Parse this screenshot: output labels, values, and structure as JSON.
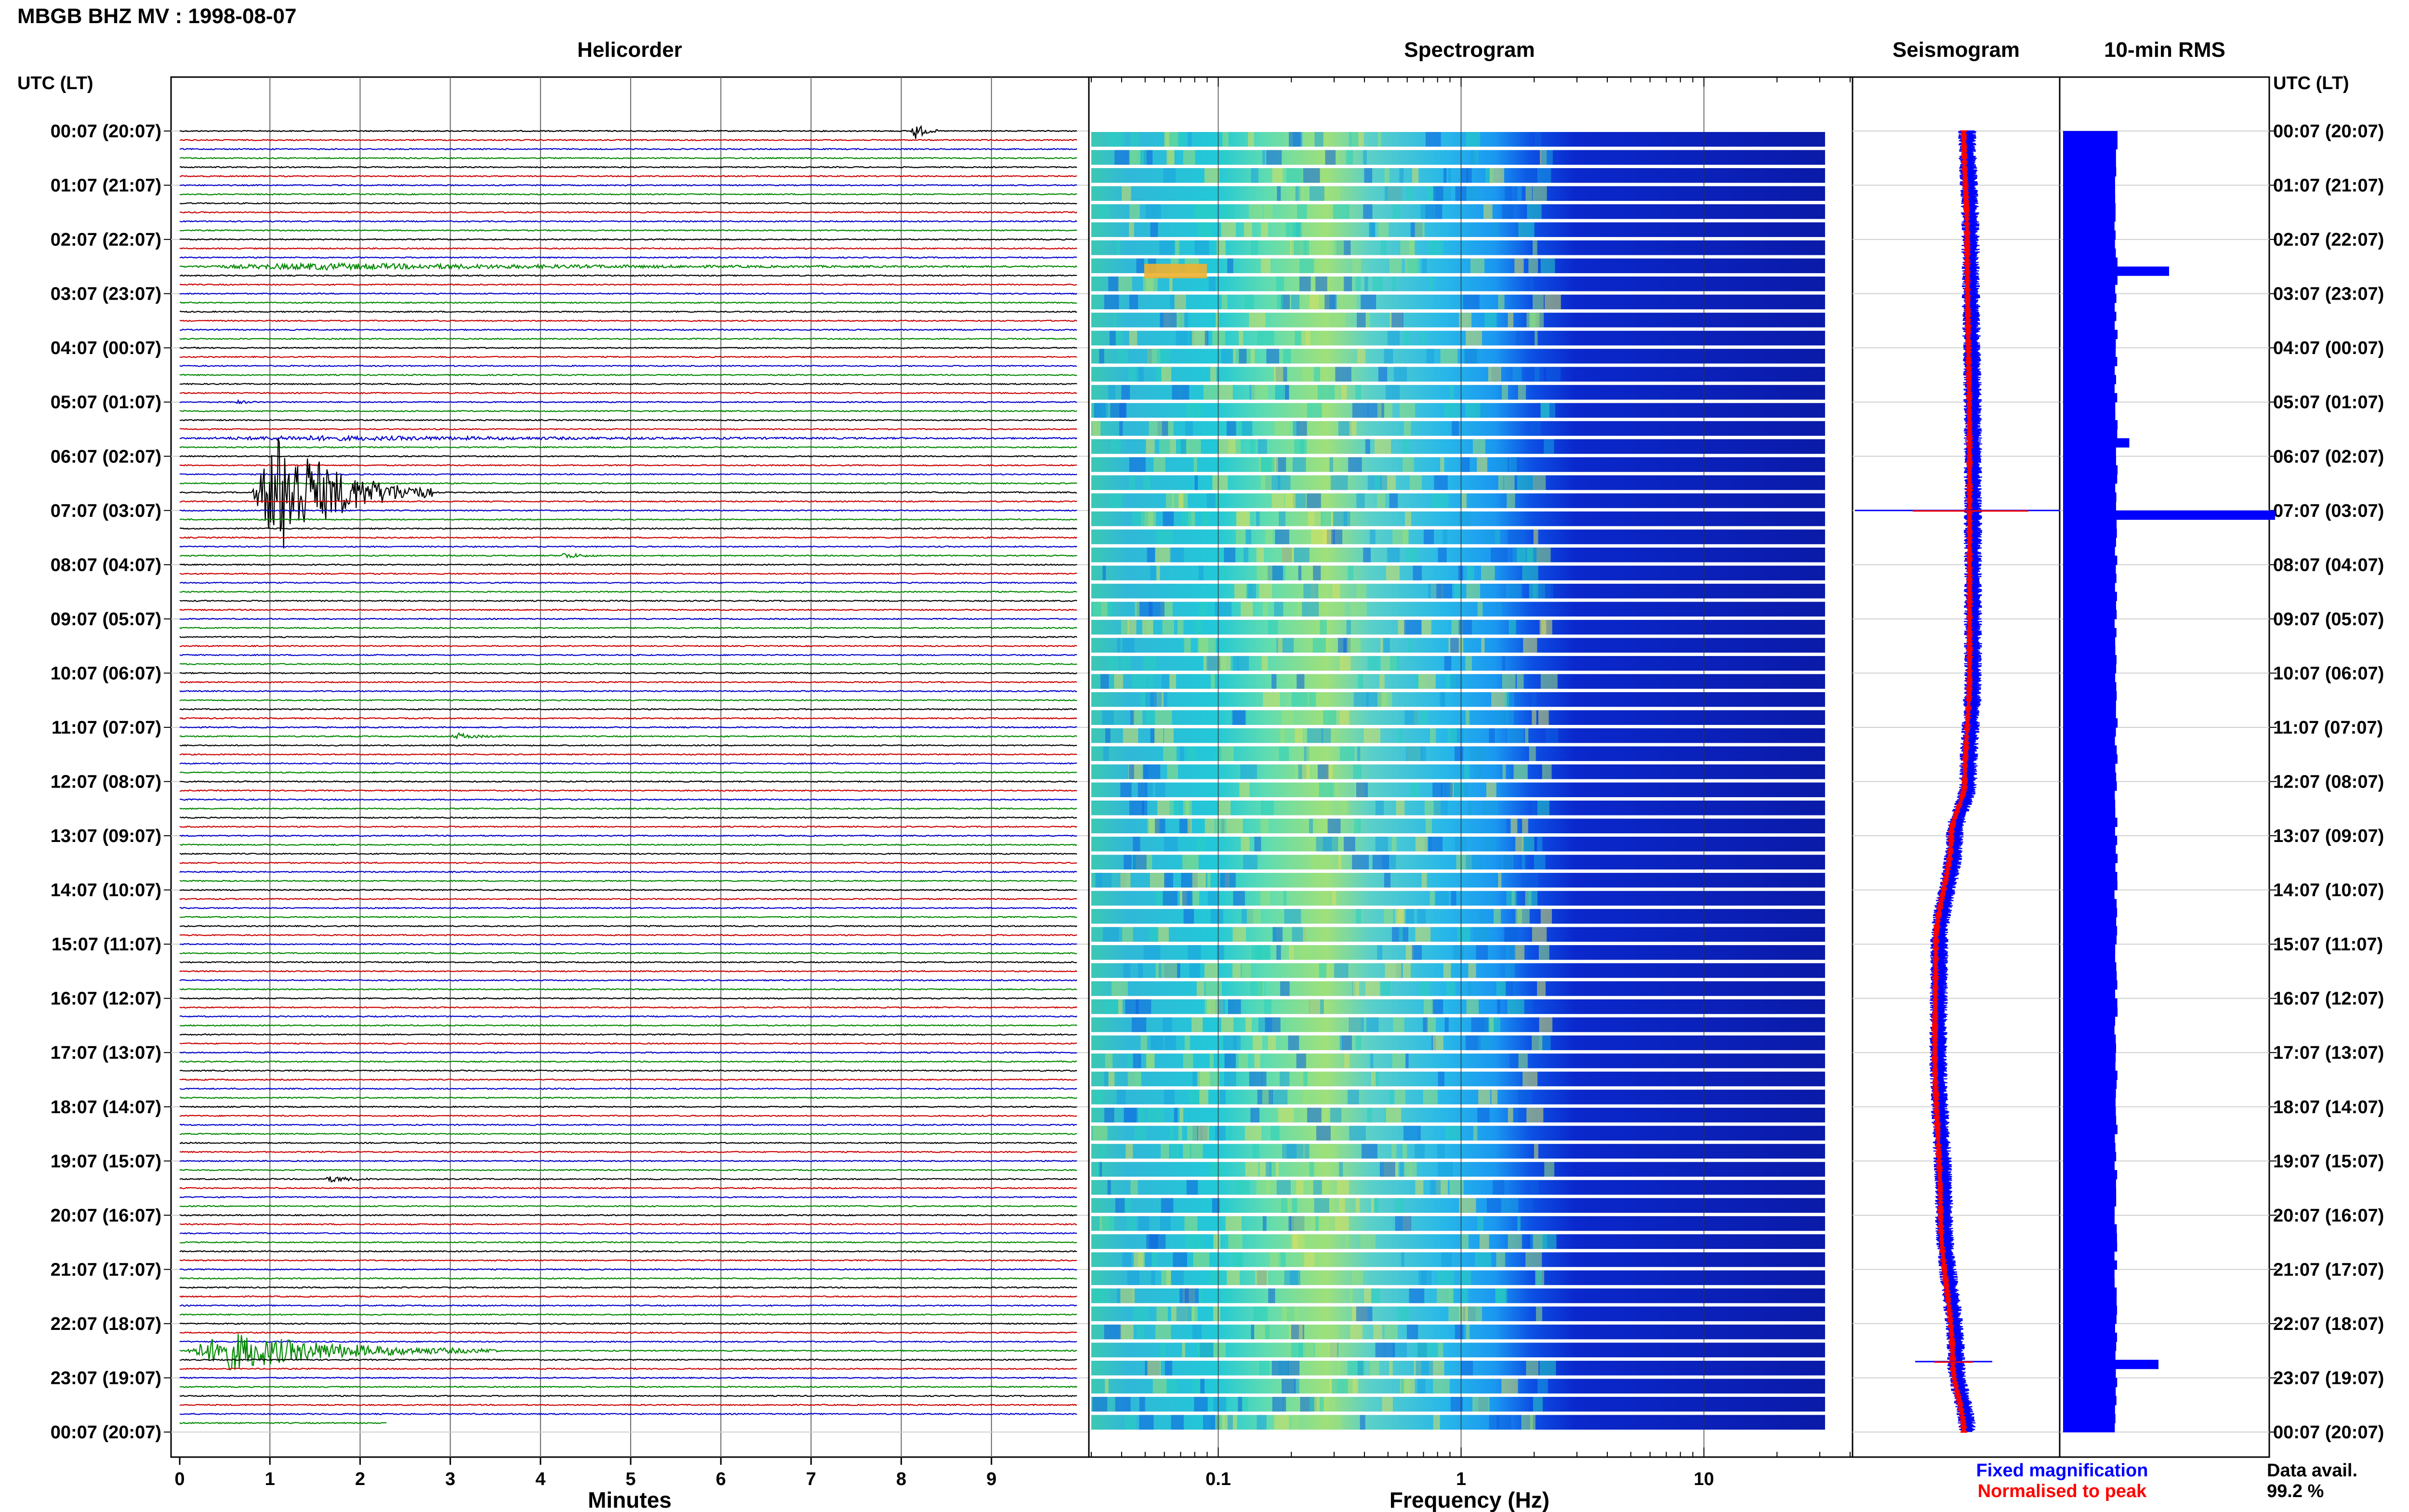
{
  "header": {
    "title": "MBGB BHZ MV : 1998-08-07"
  },
  "panels": {
    "helicorder": "Helicorder",
    "spectrogram": "Spectrogram",
    "seismogram": "Seismogram",
    "rms": "10-min RMS"
  },
  "axis_time_label": "UTC (LT)",
  "time_labels": [
    "00:07 (20:07)",
    "01:07 (21:07)",
    "02:07 (22:07)",
    "03:07 (23:07)",
    "04:07 (00:07)",
    "05:07 (01:07)",
    "06:07 (02:07)",
    "07:07 (03:07)",
    "08:07 (04:07)",
    "09:07 (05:07)",
    "10:07 (06:07)",
    "11:07 (07:07)",
    "12:07 (08:07)",
    "13:07 (09:07)",
    "14:07 (10:07)",
    "15:07 (11:07)",
    "16:07 (12:07)",
    "17:07 (13:07)",
    "18:07 (14:07)",
    "19:07 (15:07)",
    "20:07 (16:07)",
    "21:07 (17:07)",
    "22:07 (18:07)",
    "23:07 (19:07)",
    "00:07 (20:07)"
  ],
  "legend": {
    "fixed": "Fixed magnification",
    "normalised": "Normalised to peak"
  },
  "data_avail": {
    "label": "Data avail.",
    "value": "99.2 %"
  },
  "colors": {
    "trace_cycle": [
      "#000000",
      "#cc0000",
      "#0000cc",
      "#008800"
    ],
    "seis_fixed": "#0000ff",
    "seis_norm": "#ff0000",
    "rms_fill": "#0000ff"
  },
  "chart_data": [
    {
      "type": "line",
      "name": "Helicorder",
      "xlabel": "Minutes",
      "xlim": [
        0,
        10
      ],
      "x_ticks": [
        "0",
        "1",
        "2",
        "3",
        "4",
        "5",
        "6",
        "7",
        "8",
        "9"
      ],
      "rows_per_hour": 6,
      "row_count": 144,
      "events": [
        {
          "row": 0,
          "minute": 8.1,
          "amp": 2.0,
          "dur": 0.3
        },
        {
          "row": 15,
          "minute": 0.0,
          "amp": 0.6,
          "dur": 9.9
        },
        {
          "row": 30,
          "minute": 0.6,
          "amp": 0.3,
          "dur": 0.3
        },
        {
          "row": 34,
          "minute": 0.0,
          "amp": 0.4,
          "dur": 9.9
        },
        {
          "row": 40,
          "minute": 0.8,
          "amp": 13.0,
          "dur": 2.0
        },
        {
          "row": 47,
          "minute": 4.2,
          "amp": 0.6,
          "dur": 0.5
        },
        {
          "row": 67,
          "minute": 3.0,
          "amp": 0.6,
          "dur": 0.6
        },
        {
          "row": 116,
          "minute": 1.6,
          "amp": 0.6,
          "dur": 0.6
        },
        {
          "row": 135,
          "minute": 0.05,
          "amp": 4.0,
          "dur": 3.5
        }
      ]
    },
    {
      "type": "heatmap",
      "name": "Spectrogram",
      "xlabel": "Frequency (Hz)",
      "x_scale": "log",
      "xlim": [
        0.03,
        40
      ],
      "x_ticks": [
        "0.1",
        "1",
        "10"
      ]
    },
    {
      "type": "line",
      "name": "Seismogram",
      "series": [
        {
          "name": "Fixed magnification"
        },
        {
          "name": "Normalised to peak"
        }
      ],
      "spikes_hour": [
        7.0,
        22.7
      ]
    },
    {
      "type": "bar",
      "name": "10-min RMS",
      "orientation": "horizontal",
      "base_value": 1.0,
      "peaks": [
        {
          "hour": 2.5,
          "value": 2.0
        },
        {
          "hour": 5.6,
          "value": 1.25
        },
        {
          "hour": 6.0,
          "value": 1.0
        },
        {
          "hour": 7.0,
          "value": 4.0
        },
        {
          "hour": 22.7,
          "value": 1.8
        }
      ]
    }
  ]
}
